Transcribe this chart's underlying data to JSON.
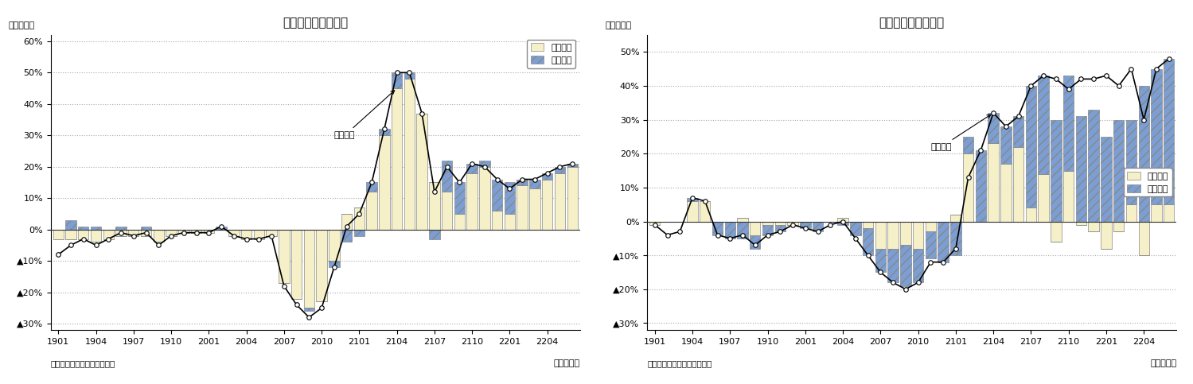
{
  "title_export": "輸出金額の要因分解",
  "title_import": "輸入金額の要因分解",
  "ylabel_label": "（前年比）",
  "xlabel_label": "（年・月）",
  "source_label": "（資料）財務省「貿易統計」",
  "xtick_labels": [
    "1901",
    "1904",
    "1907",
    "1910",
    "2001",
    "2004",
    "2007",
    "2010",
    "2101",
    "2104",
    "2107",
    "2110",
    "2201",
    "2204"
  ],
  "legend_quantity": "数量要因",
  "legend_price": "価格要因",
  "annotation_export": "輸出金額",
  "annotation_import": "輸入金額",
  "export_ylim": [
    -32,
    62
  ],
  "import_ylim": [
    -32,
    52
  ],
  "export_yticks": [
    60,
    50,
    40,
    30,
    20,
    10,
    0,
    -10,
    -20,
    -30
  ],
  "export_yticklabels": [
    "60%",
    "50%",
    "40%",
    "30%",
    "20%",
    "10%",
    "0%",
    "▲10%",
    "▲20%",
    "▲30%"
  ],
  "import_yticks": [
    50,
    40,
    30,
    20,
    10,
    0,
    -10,
    -20,
    -30
  ],
  "import_yticklabels": [
    "50%",
    "40%",
    "30%",
    "20%",
    "10%",
    "0%",
    "▲10%",
    "▲20%",
    "▲30%"
  ],
  "n_bars": 42,
  "export_quantity": [
    -3,
    -3,
    -3,
    -4,
    -3,
    -2,
    -2,
    -2,
    -4,
    -2,
    -1,
    -1,
    -1,
    0,
    -2,
    -3,
    -3,
    -2,
    -17,
    -22,
    -25,
    -23,
    -10,
    5,
    7,
    12,
    30,
    45,
    48,
    37,
    15,
    12,
    5,
    18,
    20,
    6,
    5,
    14,
    13,
    16,
    18,
    20
  ],
  "export_price": [
    0,
    3,
    1,
    1,
    0,
    1,
    0,
    1,
    0,
    0,
    0,
    0,
    0,
    1,
    0,
    0,
    0,
    0,
    0,
    0,
    -1,
    0,
    -2,
    -4,
    -2,
    3,
    2,
    5,
    2,
    0,
    -3,
    10,
    10,
    3,
    2,
    10,
    10,
    2,
    3,
    2,
    2,
    1
  ],
  "export_line": [
    -8,
    -5,
    -3,
    -5,
    -3,
    -1,
    -2,
    -1,
    -5,
    -2,
    -1,
    -1,
    -1,
    1,
    -2,
    -3,
    -3,
    -2,
    -18,
    -24,
    -28,
    -25,
    -12,
    1,
    5,
    15,
    32,
    50,
    50,
    37,
    12,
    20,
    15,
    21,
    20,
    16,
    13,
    16,
    16,
    18,
    20,
    21
  ],
  "import_quantity": [
    -1,
    0,
    0,
    6,
    6,
    0,
    0,
    1,
    -4,
    -1,
    -1,
    -1,
    0,
    0,
    0,
    1,
    0,
    -2,
    -8,
    -8,
    -7,
    -8,
    -3,
    0,
    2,
    20,
    0,
    23,
    17,
    22,
    4,
    14,
    -6,
    15,
    -1,
    -3,
    -8,
    -3,
    5,
    -10,
    5,
    5
  ],
  "import_price": [
    0,
    0,
    0,
    1,
    0,
    -4,
    -5,
    -5,
    -4,
    -3,
    -2,
    0,
    -2,
    -3,
    0,
    -1,
    -4,
    -8,
    -7,
    -10,
    -12,
    -10,
    -8,
    -12,
    -10,
    5,
    21,
    9,
    11,
    9,
    36,
    29,
    30,
    28,
    31,
    33,
    25,
    30,
    25,
    40,
    40,
    43
  ],
  "import_line": [
    -1,
    -4,
    -3,
    7,
    6,
    -4,
    -5,
    -4,
    -7,
    -4,
    -3,
    -1,
    -2,
    -3,
    -1,
    0,
    -5,
    -10,
    -15,
    -18,
    -20,
    -18,
    -12,
    -12,
    -8,
    13,
    21,
    32,
    28,
    31,
    40,
    43,
    42,
    39,
    42,
    42,
    43,
    40,
    45,
    30,
    45,
    48
  ],
  "bar_color_quantity": "#f5f0c8",
  "bar_color_price": "#7b9fd4",
  "bar_edge_color": "#888888",
  "line_color": "#000000",
  "line_marker": "o",
  "line_marker_facecolor": "#ffffff",
  "line_marker_size": 4,
  "hatch_pattern": "///",
  "bg_color": "#ffffff",
  "grid_color": "#aaaaaa",
  "grid_linestyle": "dotted"
}
